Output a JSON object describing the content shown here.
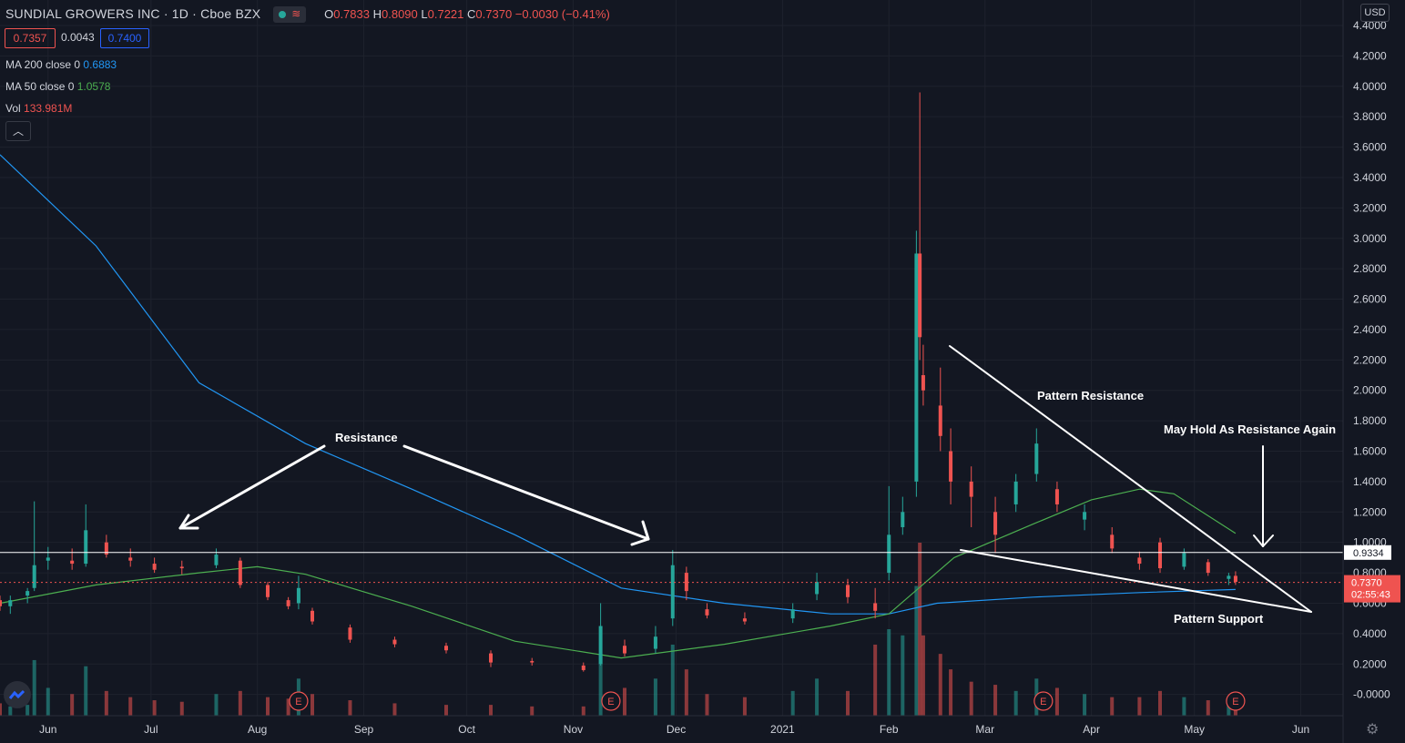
{
  "header": {
    "title": "SUNDIAL GROWERS INC · 1D · Cboe BZX",
    "open_label": "O",
    "open": "0.7833",
    "high_label": "H",
    "high": "0.8090",
    "low_label": "L",
    "low": "0.7221",
    "close_label": "C",
    "close": "0.7370",
    "change": "−0.0030 (−0.41%)"
  },
  "quote": {
    "bid": "0.7357",
    "spread": "0.0043",
    "ask": "0.7400"
  },
  "indicators": [
    {
      "label": "MA 200 close 0",
      "value": "0.6883",
      "color": "#2196f3"
    },
    {
      "label": "MA 50 close 0",
      "value": "1.0578",
      "color": "#4caf50"
    },
    {
      "label": "Vol",
      "value": "133.981M",
      "color": "#ef5350"
    }
  ],
  "currency": "USD",
  "collapse_icon": "chevron-up-icon",
  "settings_icon": "gear-icon",
  "chart_data": {
    "type": "candlestick",
    "title": "SUNDIAL GROWERS INC",
    "timeframe": "1D",
    "exchange": "Cboe BZX",
    "y_range": [
      -0.05,
      4.4
    ],
    "y_ticks": [
      "4.4000",
      "4.2000",
      "4.0000",
      "3.8000",
      "3.6000",
      "3.4000",
      "3.2000",
      "3.0000",
      "2.8000",
      "2.6000",
      "2.4000",
      "2.2000",
      "2.0000",
      "1.8000",
      "1.6000",
      "1.4000",
      "1.2000",
      "1.0000",
      "0.8000",
      "0.6000",
      "0.4000",
      "0.2000",
      "-0.0000"
    ],
    "x_ticks": [
      "Jun",
      "Jul",
      "Aug",
      "Sep",
      "Oct",
      "Nov",
      "Dec",
      "2021",
      "Feb",
      "Mar",
      "Apr",
      "May",
      "Jun"
    ],
    "x_range": [
      "2020-05-18",
      "2021-06-12"
    ],
    "price_lines": [
      {
        "label": "0.9334",
        "value": 0.9334,
        "color": "#ffffff"
      },
      {
        "label": "0.7370",
        "value": 0.737,
        "color": "#ef5350",
        "countdown": "02:55:43"
      }
    ],
    "earnings_markers": [
      "2020-08-13",
      "2020-11-12",
      "2021-03-18",
      "2021-05-13"
    ],
    "earnings_label": "E",
    "annotations": [
      {
        "text": "Resistance"
      },
      {
        "text": "Pattern Resistance"
      },
      {
        "text": "May Hold As Resistance Again"
      },
      {
        "text": "Pattern Support"
      }
    ],
    "colors": {
      "up": "#26a69a",
      "down": "#ef5350",
      "ma200": "#2196f3",
      "ma50": "#4caf50",
      "background": "#131722",
      "grid": "#1e222d"
    },
    "ma200": [
      [
        "2020-05-18",
        3.55
      ],
      [
        "2020-06-15",
        2.95
      ],
      [
        "2020-07-15",
        2.05
      ],
      [
        "2020-08-15",
        1.65
      ],
      [
        "2020-09-15",
        1.35
      ],
      [
        "2020-10-15",
        1.05
      ],
      [
        "2020-11-15",
        0.7
      ],
      [
        "2020-12-15",
        0.6
      ],
      [
        "2021-01-15",
        0.53
      ],
      [
        "2021-02-01",
        0.53
      ],
      [
        "2021-02-15",
        0.6
      ],
      [
        "2021-03-15",
        0.64
      ],
      [
        "2021-04-15",
        0.67
      ],
      [
        "2021-05-13",
        0.69
      ]
    ],
    "ma50": [
      [
        "2020-05-18",
        0.6
      ],
      [
        "2020-06-15",
        0.72
      ],
      [
        "2020-07-15",
        0.8
      ],
      [
        "2020-08-01",
        0.84
      ],
      [
        "2020-08-15",
        0.79
      ],
      [
        "2020-09-15",
        0.58
      ],
      [
        "2020-10-15",
        0.35
      ],
      [
        "2020-11-15",
        0.24
      ],
      [
        "2020-12-15",
        0.33
      ],
      [
        "2021-01-15",
        0.45
      ],
      [
        "2021-02-01",
        0.53
      ],
      [
        "2021-02-20",
        0.9
      ],
      [
        "2021-03-15",
        1.12
      ],
      [
        "2021-04-01",
        1.28
      ],
      [
        "2021-04-15",
        1.35
      ],
      [
        "2021-04-25",
        1.32
      ],
      [
        "2021-05-13",
        1.06
      ]
    ],
    "candles": [
      [
        "2020-05-18",
        0.62,
        0.65,
        0.55,
        0.58,
        40
      ],
      [
        "2020-05-21",
        0.58,
        0.65,
        0.53,
        0.62,
        30
      ],
      [
        "2020-05-26",
        0.65,
        0.7,
        0.6,
        0.68,
        35
      ],
      [
        "2020-05-28",
        0.7,
        1.27,
        0.68,
        0.85,
        180
      ],
      [
        "2020-06-01",
        0.88,
        0.97,
        0.82,
        0.9,
        90
      ],
      [
        "2020-06-08",
        0.88,
        0.96,
        0.82,
        0.86,
        70
      ],
      [
        "2020-06-12",
        0.86,
        1.25,
        0.84,
        1.08,
        160
      ],
      [
        "2020-06-18",
        1.0,
        1.05,
        0.9,
        0.92,
        80
      ],
      [
        "2020-06-25",
        0.9,
        0.96,
        0.84,
        0.88,
        60
      ],
      [
        "2020-07-02",
        0.86,
        0.9,
        0.8,
        0.82,
        50
      ],
      [
        "2020-07-10",
        0.84,
        0.88,
        0.79,
        0.83,
        45
      ],
      [
        "2020-07-20",
        0.85,
        0.96,
        0.83,
        0.92,
        70
      ],
      [
        "2020-07-27",
        0.88,
        0.9,
        0.7,
        0.72,
        80
      ],
      [
        "2020-08-04",
        0.72,
        0.74,
        0.62,
        0.64,
        60
      ],
      [
        "2020-08-10",
        0.62,
        0.64,
        0.56,
        0.58,
        55
      ],
      [
        "2020-08-13",
        0.6,
        0.78,
        0.56,
        0.7,
        120
      ],
      [
        "2020-08-17",
        0.55,
        0.57,
        0.46,
        0.48,
        70
      ],
      [
        "2020-08-28",
        0.44,
        0.46,
        0.34,
        0.36,
        50
      ],
      [
        "2020-09-10",
        0.36,
        0.38,
        0.31,
        0.33,
        40
      ],
      [
        "2020-09-25",
        0.32,
        0.34,
        0.27,
        0.29,
        35
      ],
      [
        "2020-10-08",
        0.27,
        0.29,
        0.18,
        0.21,
        35
      ],
      [
        "2020-10-20",
        0.22,
        0.24,
        0.19,
        0.21,
        30
      ],
      [
        "2020-11-04",
        0.19,
        0.21,
        0.15,
        0.16,
        30
      ],
      [
        "2020-11-09",
        0.2,
        0.6,
        0.19,
        0.45,
        200
      ],
      [
        "2020-11-16",
        0.32,
        0.36,
        0.25,
        0.27,
        90
      ],
      [
        "2020-11-25",
        0.3,
        0.45,
        0.27,
        0.38,
        120
      ],
      [
        "2020-11-30",
        0.5,
        0.95,
        0.45,
        0.85,
        230
      ],
      [
        "2020-12-04",
        0.8,
        0.84,
        0.62,
        0.68,
        150
      ],
      [
        "2020-12-10",
        0.56,
        0.6,
        0.5,
        0.52,
        70
      ],
      [
        "2020-12-21",
        0.5,
        0.54,
        0.46,
        0.48,
        60
      ],
      [
        "2021-01-04",
        0.5,
        0.6,
        0.47,
        0.56,
        80
      ],
      [
        "2021-01-11",
        0.66,
        0.8,
        0.62,
        0.74,
        120
      ],
      [
        "2021-01-20",
        0.72,
        0.76,
        0.6,
        0.64,
        80
      ],
      [
        "2021-01-28",
        0.6,
        0.7,
        0.5,
        0.55,
        230
      ],
      [
        "2021-02-01",
        0.8,
        1.37,
        0.75,
        1.05,
        280
      ],
      [
        "2021-02-05",
        1.1,
        1.3,
        1.05,
        1.2,
        260
      ],
      [
        "2021-02-09",
        1.4,
        3.05,
        1.3,
        2.9,
        420
      ],
      [
        "2021-02-10",
        2.9,
        3.96,
        2.2,
        2.35,
        560
      ],
      [
        "2021-02-11",
        2.1,
        2.3,
        1.9,
        2.0,
        260
      ],
      [
        "2021-02-16",
        1.9,
        2.15,
        1.6,
        1.7,
        200
      ],
      [
        "2021-02-19",
        1.6,
        1.75,
        1.25,
        1.4,
        150
      ],
      [
        "2021-02-25",
        1.4,
        1.5,
        1.1,
        1.3,
        110
      ],
      [
        "2021-03-04",
        1.2,
        1.3,
        0.93,
        1.05,
        100
      ],
      [
        "2021-03-10",
        1.25,
        1.45,
        1.2,
        1.4,
        80
      ],
      [
        "2021-03-16",
        1.45,
        1.75,
        1.4,
        1.65,
        120
      ],
      [
        "2021-03-22",
        1.35,
        1.4,
        1.2,
        1.25,
        90
      ],
      [
        "2021-03-30",
        1.15,
        1.25,
        1.08,
        1.2,
        70
      ],
      [
        "2021-04-07",
        1.05,
        1.1,
        0.93,
        0.96,
        60
      ],
      [
        "2021-04-15",
        0.9,
        0.94,
        0.82,
        0.86,
        60
      ],
      [
        "2021-04-21",
        1.0,
        1.03,
        0.8,
        0.83,
        80
      ],
      [
        "2021-04-28",
        0.84,
        0.96,
        0.82,
        0.93,
        60
      ],
      [
        "2021-05-05",
        0.87,
        0.89,
        0.78,
        0.8,
        50
      ],
      [
        "2021-05-11",
        0.76,
        0.8,
        0.72,
        0.78,
        45
      ],
      [
        "2021-05-13",
        0.78,
        0.81,
        0.72,
        0.74,
        40
      ]
    ]
  }
}
